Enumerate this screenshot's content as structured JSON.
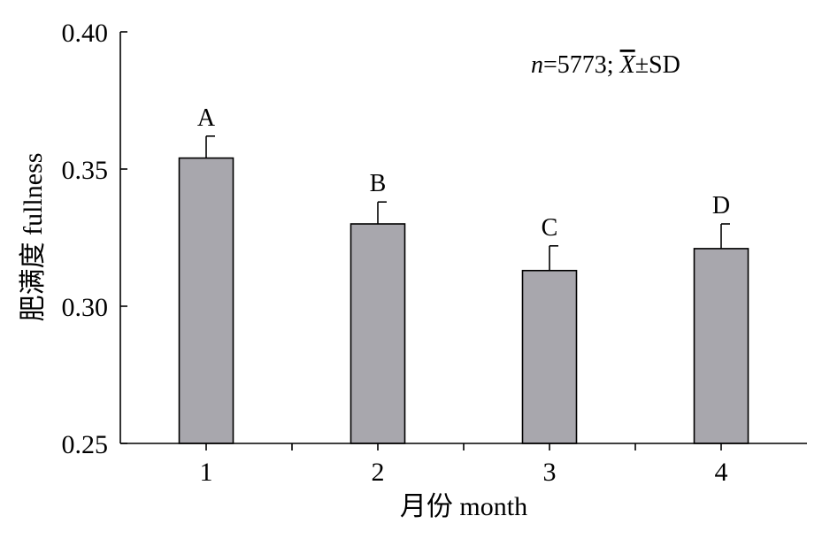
{
  "chart_data": {
    "type": "bar",
    "categories": [
      "1",
      "2",
      "3",
      "4"
    ],
    "values": [
      0.354,
      0.33,
      0.313,
      0.321
    ],
    "error_upper": [
      0.008,
      0.008,
      0.009,
      0.009
    ],
    "significance_labels": [
      "A",
      "B",
      "C",
      "D"
    ],
    "xlabel": "月份 month",
    "ylabel": "肥满度 fullness",
    "ylim": [
      0.25,
      0.4
    ],
    "yticks": [
      "0.25",
      "0.30",
      "0.35",
      "0.40"
    ],
    "annotation": {
      "n_prefix": "n",
      "n_value": "=5773; ",
      "xbar": "X",
      "suffix": "±SD"
    },
    "bar_color": "#a8a7ad",
    "grid": false,
    "legend": "none"
  }
}
